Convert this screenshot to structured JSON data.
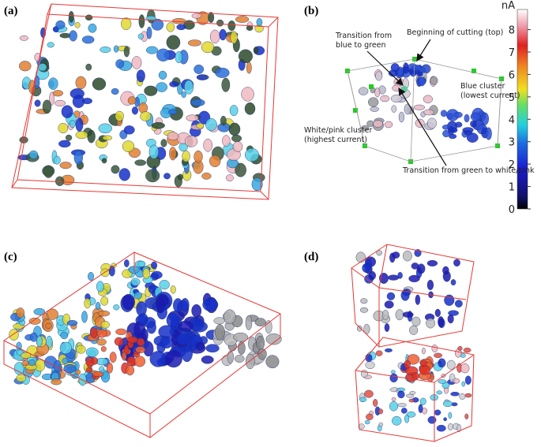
{
  "panels": [
    {
      "label": "(a)"
    },
    {
      "label": "(b)"
    },
    {
      "label": "(c)"
    },
    {
      "label": "(d)"
    }
  ],
  "annotations": [
    {
      "lines": [
        "Transition from",
        "blue to green"
      ]
    },
    {
      "lines": [
        "Beginning of cutting (top)"
      ]
    },
    {
      "lines": [
        "Blue cluster",
        "(lowest current)"
      ]
    },
    {
      "lines": [
        "White/pink cluster",
        "(highest current)"
      ]
    },
    {
      "lines": [
        "Transition from green to white/pink"
      ]
    }
  ],
  "colorbar": {
    "unit": "nA",
    "ticks": [
      0,
      1,
      2,
      3,
      4,
      5,
      6,
      7,
      8
    ],
    "lim": [
      0,
      8.9
    ]
  }
}
